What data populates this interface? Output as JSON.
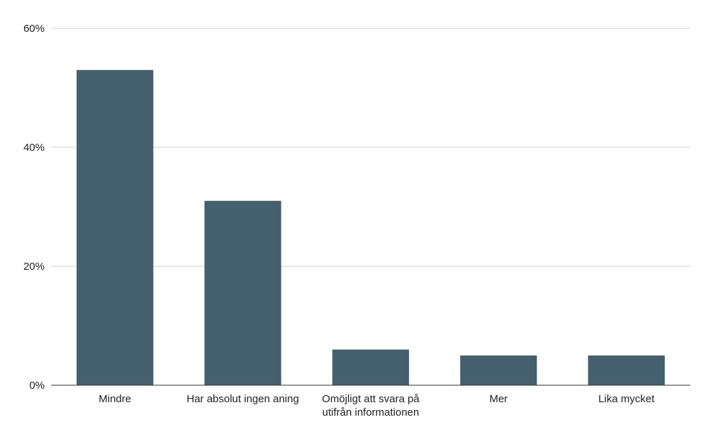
{
  "chart_data": {
    "type": "bar",
    "title": "",
    "xlabel": "",
    "ylabel": "",
    "categories": [
      [
        "Mindre"
      ],
      [
        "Har absolut ingen aning"
      ],
      [
        "Omöjligt att svara på",
        "utifrån informationen"
      ],
      [
        "Mer"
      ],
      [
        "Lika mycket"
      ]
    ],
    "values": [
      53,
      31,
      6,
      5,
      5
    ],
    "ylim": [
      0,
      60
    ],
    "yticks": [
      0,
      20,
      40,
      60
    ],
    "ytick_labels": [
      "0%",
      "20%",
      "40%",
      "60%"
    ],
    "grid": true,
    "legend": "none",
    "colors": {
      "bar": "#44606f",
      "grid": "#d0d0d0",
      "axis": "#333333"
    }
  }
}
